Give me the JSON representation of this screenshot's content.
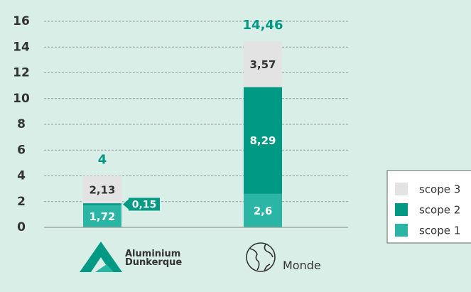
{
  "chart_data": {
    "type": "stacked_bar",
    "categories": [
      "Aluminium Dunkerque",
      "Monde"
    ],
    "series": [
      {
        "name": "scope 1",
        "color": "#2bb5a5",
        "values": [
          1.72,
          2.6
        ],
        "value_labels": [
          "1,72",
          "2,6"
        ]
      },
      {
        "name": "scope 2",
        "color": "#009a84",
        "values": [
          0.15,
          8.29
        ],
        "value_labels": [
          "0,15",
          "8,29"
        ]
      },
      {
        "name": "scope 3",
        "color": "#e3e3e3",
        "values": [
          2.13,
          3.57
        ],
        "value_labels": [
          "2,13",
          "3,57"
        ]
      }
    ],
    "totals": [
      4,
      14.46
    ],
    "total_labels": [
      "4",
      "14,46"
    ],
    "ylim": [
      0,
      16
    ],
    "yticks": [
      0,
      2,
      4,
      6,
      8,
      10,
      12,
      14,
      16
    ],
    "grid": true,
    "legend": "right"
  }
}
